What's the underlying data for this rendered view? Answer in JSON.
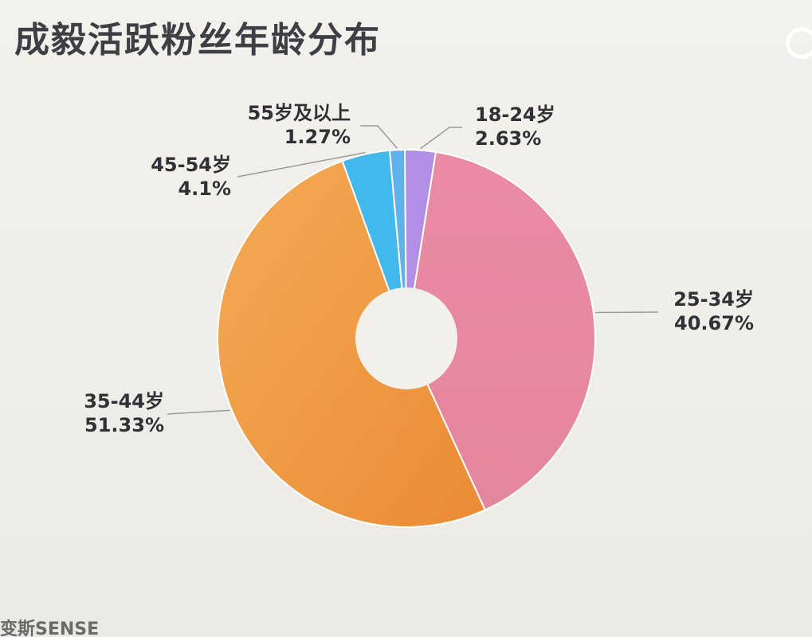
{
  "title": "成毅活跃粉丝年龄分布",
  "footer": "变斯SENSE",
  "chart_data": {
    "type": "pie",
    "donut": true,
    "categories": [
      "18-24岁",
      "25-34岁",
      "35-44岁",
      "45-54岁",
      "55岁及以上"
    ],
    "values": [
      2.63,
      40.67,
      51.33,
      4.1,
      1.27
    ],
    "value_labels": [
      "2.63%",
      "40.67%",
      "51.33%",
      "4.1%",
      "1.27%"
    ],
    "colors": [
      "#b28fe6",
      "#e8879e",
      "#f0a24a",
      "#43b8ec",
      "#5fb1ea"
    ],
    "title": "成毅活跃粉丝年龄分布"
  }
}
